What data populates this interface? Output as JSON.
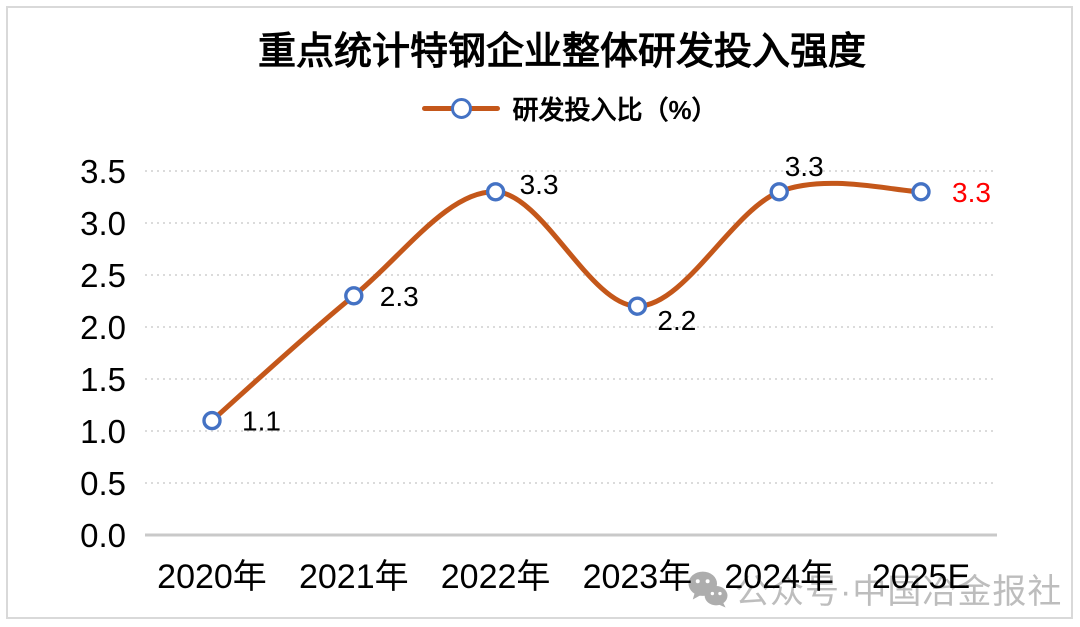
{
  "header": {
    "title": "重点统计特钢企业整体研发投入强度"
  },
  "legend": {
    "label": "研发投入比（%）"
  },
  "watermark": {
    "icon": "wechat-icon",
    "text": "公众号·中国冶金报社"
  },
  "chart_data": {
    "type": "line",
    "smooth": true,
    "title": "重点统计特钢企业整体研发投入强度",
    "categories": [
      "2020年",
      "2021年",
      "2022年",
      "2023年",
      "2024年",
      "2025E"
    ],
    "series": [
      {
        "name": "研发投入比（%）",
        "values": [
          1.1,
          2.3,
          3.3,
          2.2,
          3.3,
          3.3
        ],
        "point_labels": [
          "1.1",
          "2.3",
          "3.3",
          "2.2",
          "3.3",
          "3.3"
        ],
        "estimate_point_index": 5
      }
    ],
    "xlabel": "",
    "ylabel": "",
    "ylim": [
      0,
      3.5
    ],
    "ytick_step": 0.5,
    "ytick_labels": [
      "0.0",
      "0.5",
      "1.0",
      "1.5",
      "2.0",
      "2.5",
      "3.0",
      "3.5"
    ],
    "grid": {
      "horizontal": true,
      "style": "dotted"
    },
    "legend_position": "top",
    "colors": {
      "line": "#C4571A",
      "marker_stroke": "#4472C4",
      "marker_fill": "#FFFFFF",
      "label": "#000000",
      "estimate_label": "#FF0000",
      "grid": "#DBDBDB",
      "axis": "#C9C9C9",
      "tick_text": "#000000",
      "watermark_text": "#BDBDBD",
      "watermark_icon": "#ADADAD",
      "frame": "#D9D9D9"
    }
  }
}
